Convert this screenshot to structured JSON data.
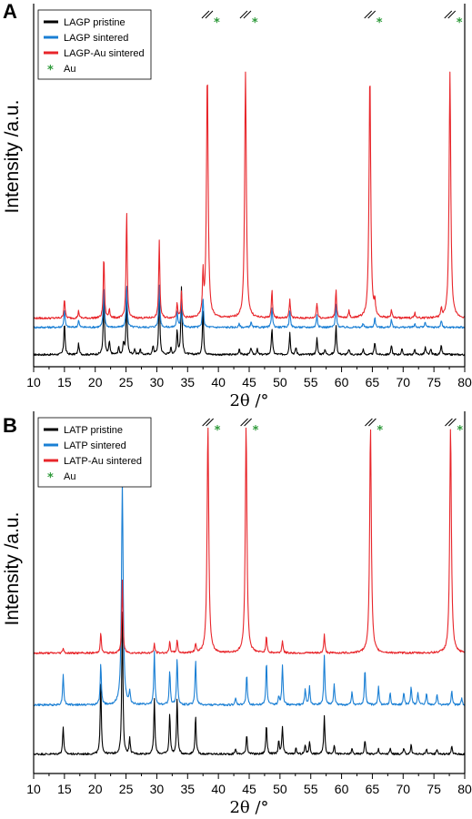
{
  "colors": {
    "pristine": "#000000",
    "sintered": "#1a7fd4",
    "au_sintered": "#e8252a",
    "au_marker": "#2e9a3a"
  },
  "chart_data": [
    {
      "type": "line",
      "panel_label": "A",
      "xlabel": "2θ /°",
      "ylabel": "Intensity /a.u.",
      "xlim": [
        10,
        80
      ],
      "xticks": [
        10,
        15,
        20,
        25,
        30,
        35,
        40,
        45,
        50,
        55,
        60,
        65,
        70,
        75,
        80
      ],
      "legend_position": "top-left",
      "au_marker_label": "Au",
      "au_marker_symbol": "*",
      "au_peaks": [
        38.2,
        44.4,
        64.6,
        77.6
      ],
      "series": [
        {
          "name": "LAGP pristine",
          "color_key": "pristine",
          "baseline": 0,
          "peaks": [
            [
              15.0,
              36
            ],
            [
              17.3,
              12
            ],
            [
              21.4,
              70
            ],
            [
              22.3,
              14
            ],
            [
              23.8,
              8
            ],
            [
              24.6,
              12
            ],
            [
              25.1,
              66
            ],
            [
              26.4,
              6
            ],
            [
              27.3,
              6
            ],
            [
              29.4,
              10
            ],
            [
              30.4,
              71
            ],
            [
              32.3,
              8
            ],
            [
              33.3,
              27
            ],
            [
              34.0,
              74
            ],
            [
              37.5,
              50
            ],
            [
              43.4,
              7
            ],
            [
              45.3,
              8
            ],
            [
              46.3,
              6
            ],
            [
              48.7,
              29
            ],
            [
              51.6,
              24
            ],
            [
              52.6,
              8
            ],
            [
              56.0,
              18
            ],
            [
              57.3,
              6
            ],
            [
              59.1,
              32
            ],
            [
              61.2,
              6
            ],
            [
              63.5,
              6
            ],
            [
              65.4,
              14
            ],
            [
              68.1,
              10
            ],
            [
              69.8,
              6
            ],
            [
              71.9,
              6
            ],
            [
              73.6,
              8
            ],
            [
              74.5,
              6
            ],
            [
              76.2,
              10
            ]
          ]
        },
        {
          "name": "LAGP sintered",
          "color_key": "sintered",
          "baseline": 30,
          "peaks": [
            [
              15.0,
              20
            ],
            [
              17.3,
              8
            ],
            [
              21.4,
              46
            ],
            [
              25.1,
              46
            ],
            [
              30.4,
              47
            ],
            [
              33.3,
              17
            ],
            [
              34.0,
              34
            ],
            [
              37.5,
              33
            ],
            [
              43.4,
              4
            ],
            [
              45.3,
              6
            ],
            [
              48.7,
              23
            ],
            [
              51.6,
              19
            ],
            [
              56.0,
              14
            ],
            [
              59.1,
              26
            ],
            [
              63.5,
              4
            ],
            [
              65.4,
              11
            ],
            [
              68.1,
              8
            ],
            [
              71.9,
              4
            ],
            [
              73.6,
              6
            ],
            [
              76.2,
              8
            ]
          ]
        },
        {
          "name": "LAGP-Au sintered",
          "color_key": "au_sintered",
          "baseline": 40,
          "peaks": [
            [
              15.0,
              22
            ],
            [
              17.3,
              8
            ],
            [
              21.4,
              69
            ],
            [
              22.3,
              10
            ],
            [
              25.1,
              118
            ],
            [
              30.4,
              85
            ],
            [
              33.3,
              17
            ],
            [
              34.0,
              28
            ],
            [
              37.5,
              45
            ],
            [
              38.2,
              270
            ],
            [
              44.4,
              270
            ],
            [
              48.7,
              30
            ],
            [
              51.6,
              21
            ],
            [
              56.0,
              17
            ],
            [
              59.1,
              32
            ],
            [
              61.2,
              8
            ],
            [
              64.6,
              270
            ],
            [
              65.4,
              16
            ],
            [
              68.1,
              9
            ],
            [
              71.9,
              6
            ],
            [
              76.2,
              9
            ],
            [
              77.6,
              270
            ]
          ]
        }
      ]
    },
    {
      "type": "line",
      "panel_label": "B",
      "xlabel": "2θ /°",
      "ylabel": "Intensity /a.u.",
      "xlim": [
        10,
        80
      ],
      "xticks": [
        10,
        15,
        20,
        25,
        30,
        35,
        40,
        45,
        50,
        55,
        60,
        65,
        70,
        75,
        80
      ],
      "legend_position": "top-left",
      "au_marker_label": "Au",
      "au_marker_symbol": "*",
      "au_peaks": [
        38.3,
        44.5,
        64.7,
        77.7
      ],
      "series": [
        {
          "name": "LATP pristine",
          "color_key": "pristine",
          "baseline": 0,
          "peaks": [
            [
              14.8,
              30
            ],
            [
              20.9,
              78
            ],
            [
              24.4,
              155
            ],
            [
              25.6,
              17
            ],
            [
              29.6,
              60
            ],
            [
              32.1,
              45
            ],
            [
              33.3,
              62
            ],
            [
              36.3,
              42
            ],
            [
              42.8,
              6
            ],
            [
              44.6,
              22
            ],
            [
              47.8,
              33
            ],
            [
              49.8,
              14
            ],
            [
              50.4,
              30
            ],
            [
              52.6,
              6
            ],
            [
              54.1,
              10
            ],
            [
              54.8,
              14
            ],
            [
              57.2,
              42
            ],
            [
              58.8,
              10
            ],
            [
              61.7,
              6
            ],
            [
              63.8,
              16
            ],
            [
              66.0,
              6
            ],
            [
              67.9,
              6
            ],
            [
              70.1,
              6
            ],
            [
              71.3,
              10
            ],
            [
              73.8,
              6
            ],
            [
              75.5,
              6
            ],
            [
              77.9,
              8
            ]
          ]
        },
        {
          "name": "LATP sintered",
          "color_key": "sintered",
          "baseline": 54,
          "peaks": [
            [
              14.8,
              34
            ],
            [
              20.9,
              46
            ],
            [
              24.4,
              244
            ],
            [
              25.6,
              13
            ],
            [
              29.6,
              58
            ],
            [
              32.1,
              38
            ],
            [
              33.3,
              52
            ],
            [
              36.3,
              50
            ],
            [
              42.8,
              7
            ],
            [
              44.6,
              34
            ],
            [
              47.8,
              48
            ],
            [
              49.8,
              10
            ],
            [
              50.4,
              44
            ],
            [
              54.1,
              18
            ],
            [
              54.8,
              20
            ],
            [
              57.2,
              55
            ],
            [
              58.8,
              22
            ],
            [
              61.7,
              14
            ],
            [
              63.8,
              40
            ],
            [
              66.0,
              20
            ],
            [
              67.9,
              13
            ],
            [
              70.1,
              14
            ],
            [
              71.3,
              20
            ],
            [
              72.4,
              14
            ],
            [
              73.8,
              13
            ],
            [
              75.5,
              12
            ],
            [
              77.9,
              16
            ],
            [
              79.5,
              8
            ]
          ]
        },
        {
          "name": "LATP-Au sintered",
          "color_key": "au_sintered",
          "baseline": 111,
          "peaks": [
            [
              14.8,
              6
            ],
            [
              20.9,
              22
            ],
            [
              24.4,
              80
            ],
            [
              29.6,
              10
            ],
            [
              32.1,
              12
            ],
            [
              33.3,
              14
            ],
            [
              36.3,
              10
            ],
            [
              38.3,
              250
            ],
            [
              44.5,
              250
            ],
            [
              47.8,
              18
            ],
            [
              50.4,
              14
            ],
            [
              57.2,
              20
            ],
            [
              64.7,
              250
            ],
            [
              77.7,
              250
            ]
          ]
        }
      ]
    }
  ]
}
